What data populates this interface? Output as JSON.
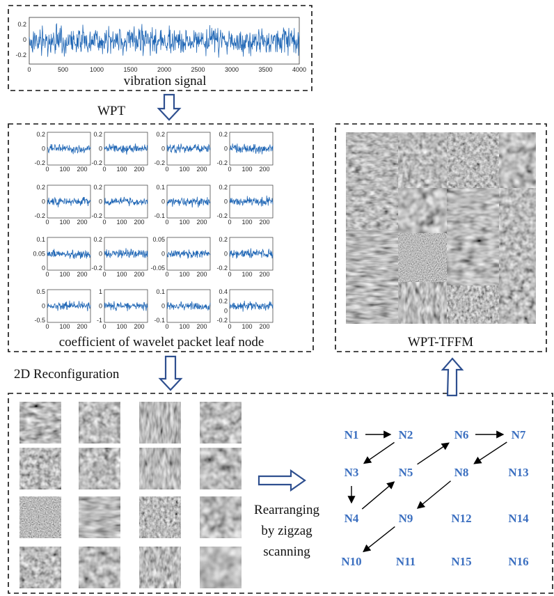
{
  "signal": {
    "yticks": [
      "0.2",
      "0",
      "-0.2"
    ],
    "xticks": [
      "0",
      "500",
      "1000",
      "1500",
      "2000",
      "2500",
      "3000",
      "3500",
      "4000"
    ],
    "caption": "vibration signal"
  },
  "wpt_label": "WPT",
  "subplots": {
    "xticks": [
      "0",
      "100",
      "200"
    ],
    "yticks": [
      [
        "0.2",
        "0",
        "-0.2"
      ],
      [
        "0.2",
        "0",
        "-0.2"
      ],
      [
        "0.2",
        "0",
        "-0.2"
      ],
      [
        "0.2",
        "0",
        "-0.2"
      ],
      [
        "0.2",
        "0",
        "-0.2"
      ],
      [
        "0.2",
        "0",
        "-0.2"
      ],
      [
        "0.1",
        "0",
        "-0.1"
      ],
      [
        "0.2",
        "0",
        "-0.2"
      ],
      [
        "0.1",
        "0.05",
        "0"
      ],
      [
        "0.2",
        "0",
        "-0.2"
      ],
      [
        "0.05",
        "0",
        "-0.05"
      ],
      [
        "0.2",
        "0",
        "-0.2"
      ],
      [
        "0.5",
        "0",
        "-0.5"
      ],
      [
        "1",
        "0",
        "-1"
      ],
      [
        "0.1",
        "0",
        "-0.1"
      ],
      [
        "0.4",
        "0.2",
        "0",
        "-0.2"
      ]
    ],
    "caption": "coefficient  of wavelet packet leaf node"
  },
  "reconfig_label": "2D Reconfiguration",
  "rearrange_label": [
    "Rearranging",
    "by zigzag",
    "scanning"
  ],
  "nodes": [
    {
      "label": "N1"
    },
    {
      "label": "N2"
    },
    {
      "label": "N6"
    },
    {
      "label": "N7"
    },
    {
      "label": "N3"
    },
    {
      "label": "N5"
    },
    {
      "label": "N8"
    },
    {
      "label": "N13"
    },
    {
      "label": "N4"
    },
    {
      "label": "N9"
    },
    {
      "label": "N12"
    },
    {
      "label": "N14"
    },
    {
      "label": "N10"
    },
    {
      "label": "N11"
    },
    {
      "label": "N15"
    },
    {
      "label": "N16"
    }
  ],
  "output_label": "WPT-TFFM"
}
